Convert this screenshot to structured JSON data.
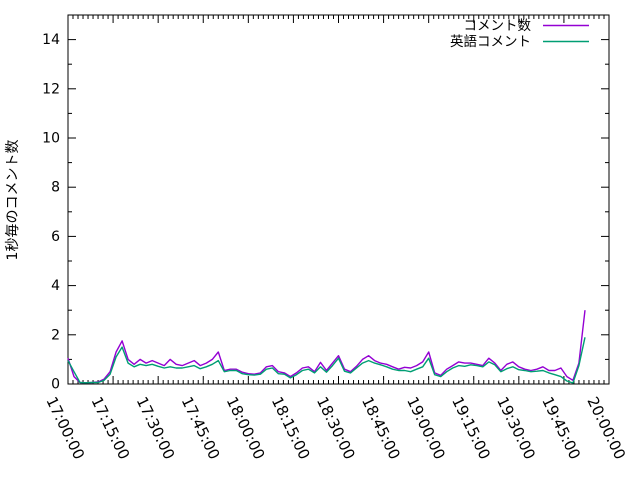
{
  "chart_data": {
    "type": "line",
    "title": "",
    "xlabel": "",
    "ylabel": "1秒毎のコメント数",
    "ylim": [
      0,
      15
    ],
    "yticks": [
      0,
      2,
      4,
      6,
      8,
      10,
      12,
      14
    ],
    "grid": false,
    "legend_position": "top-right-inside",
    "background_color": "#ffffff",
    "axis_color": "#000000",
    "x_axis": {
      "range_minutes": [
        0,
        180
      ],
      "tick_interval_minutes": 15,
      "minor_divisions": 9,
      "tick_labels": [
        "17:00:00",
        "17:15:00",
        "17:30:00",
        "17:45:00",
        "18:00:00",
        "18:15:00",
        "18:30:00",
        "18:45:00",
        "19:00:00",
        "19:15:00",
        "19:30:00",
        "19:45:00",
        "20:00:00"
      ]
    },
    "sample_start_minutes": 0,
    "sample_step_minutes": 2,
    "series": [
      {
        "name": "コメント数",
        "color": "#9400d3",
        "values": [
          1.05,
          0.3,
          0.06,
          0.05,
          0.06,
          0.08,
          0.2,
          0.5,
          1.3,
          1.75,
          1.0,
          0.8,
          1.0,
          0.85,
          0.95,
          0.85,
          0.75,
          1.0,
          0.8,
          0.75,
          0.85,
          0.95,
          0.75,
          0.85,
          1.0,
          1.3,
          0.55,
          0.6,
          0.6,
          0.48,
          0.42,
          0.4,
          0.45,
          0.7,
          0.75,
          0.5,
          0.45,
          0.3,
          0.45,
          0.65,
          0.7,
          0.5,
          0.88,
          0.55,
          0.85,
          1.15,
          0.6,
          0.5,
          0.72,
          1.0,
          1.15,
          0.95,
          0.85,
          0.8,
          0.7,
          0.6,
          0.68,
          0.65,
          0.75,
          0.9,
          1.3,
          0.45,
          0.35,
          0.6,
          0.75,
          0.9,
          0.85,
          0.85,
          0.8,
          0.75,
          1.05,
          0.85,
          0.55,
          0.8,
          0.9,
          0.7,
          0.6,
          0.55,
          0.6,
          0.7,
          0.55,
          0.55,
          0.65,
          0.3,
          0.15,
          0.85,
          3.0
        ]
      },
      {
        "name": "英語コメント",
        "color": "#009e73",
        "values": [
          0.95,
          0.5,
          0.06,
          0.05,
          0.06,
          0.06,
          0.15,
          0.4,
          1.1,
          1.5,
          0.85,
          0.7,
          0.8,
          0.75,
          0.8,
          0.72,
          0.65,
          0.7,
          0.65,
          0.65,
          0.7,
          0.75,
          0.62,
          0.7,
          0.8,
          0.95,
          0.5,
          0.55,
          0.55,
          0.42,
          0.38,
          0.36,
          0.4,
          0.6,
          0.65,
          0.42,
          0.4,
          0.25,
          0.38,
          0.55,
          0.6,
          0.45,
          0.7,
          0.48,
          0.75,
          1.05,
          0.52,
          0.45,
          0.65,
          0.85,
          0.95,
          0.85,
          0.78,
          0.7,
          0.6,
          0.55,
          0.55,
          0.5,
          0.6,
          0.7,
          1.05,
          0.38,
          0.3,
          0.5,
          0.65,
          0.75,
          0.72,
          0.78,
          0.75,
          0.7,
          0.9,
          0.78,
          0.5,
          0.62,
          0.7,
          0.58,
          0.55,
          0.5,
          0.52,
          0.55,
          0.45,
          0.38,
          0.3,
          0.12,
          0.04,
          0.75,
          1.9
        ]
      }
    ]
  }
}
